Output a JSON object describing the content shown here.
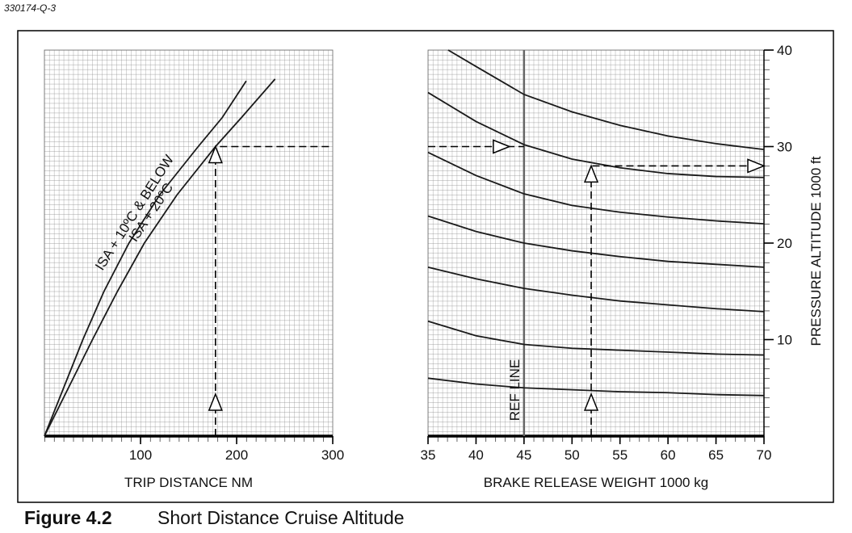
{
  "figure_id": "330174-Q-3",
  "caption": {
    "number": "Figure 4.2",
    "title": "Short Distance Cruise Altitude"
  },
  "chart_data": [
    {
      "type": "line",
      "xlabel": "TRIP DISTANCE  NM",
      "xlim": [
        0,
        300
      ],
      "xticks": [
        100,
        200,
        300
      ],
      "ylim": [
        0,
        40
      ],
      "grid": true,
      "series": [
        {
          "name": "ISA + 10ºC & BELOW",
          "color": "#1a1a1a",
          "x": [
            0,
            20,
            40,
            62,
            88,
            120,
            160,
            185,
            210
          ],
          "values": [
            0,
            5,
            10,
            15,
            20,
            25,
            30,
            33,
            36.8
          ]
        },
        {
          "name": "ISA + 20ºC",
          "color": "#1a1a1a",
          "x": [
            0,
            25,
            50,
            76,
            104,
            138,
            178,
            205,
            240
          ],
          "values": [
            0,
            5,
            10,
            15,
            20,
            25,
            30,
            33,
            37
          ]
        }
      ],
      "guides": [
        {
          "x": [
            178,
            178,
            300
          ],
          "y": [
            0,
            30,
            30
          ]
        }
      ]
    },
    {
      "type": "line",
      "xlabel": "BRAKE RELEASE WEIGHT   1000 kg",
      "ylabel": "PRESSURE ALTITUDE   1000 ft",
      "xlim": [
        35,
        70
      ],
      "xticks": [
        35,
        40,
        45,
        50,
        55,
        60,
        65,
        70
      ],
      "ylim": [
        0,
        40
      ],
      "yticks": [
        10,
        20,
        30,
        40
      ],
      "grid": true,
      "ref_line": {
        "x": 45,
        "label": "REF LINE"
      },
      "series": [
        {
          "color": "#1a1a1a",
          "x": [
            37.1,
            40,
            45,
            50,
            55,
            60,
            65,
            70
          ],
          "values": [
            40,
            38.3,
            35.4,
            33.6,
            32.2,
            31.1,
            30.3,
            29.7
          ]
        },
        {
          "color": "#1a1a1a",
          "x": [
            35,
            40,
            45,
            50,
            55,
            60,
            65,
            70
          ],
          "values": [
            35.6,
            32.6,
            30.2,
            28.7,
            27.8,
            27.2,
            26.9,
            26.8
          ]
        },
        {
          "color": "#1a1a1a",
          "x": [
            35,
            40,
            45,
            50,
            55,
            60,
            65,
            70
          ],
          "values": [
            29.4,
            27,
            25.1,
            23.9,
            23.2,
            22.7,
            22.3,
            22
          ]
        },
        {
          "color": "#1a1a1a",
          "x": [
            35,
            40,
            45,
            50,
            55,
            60,
            65,
            70
          ],
          "values": [
            22.8,
            21.2,
            20,
            19.2,
            18.6,
            18.1,
            17.8,
            17.5
          ]
        },
        {
          "color": "#1a1a1a",
          "x": [
            35,
            40,
            45,
            50,
            55,
            60,
            65,
            70
          ],
          "values": [
            17.5,
            16.3,
            15.3,
            14.6,
            14,
            13.6,
            13.2,
            12.9
          ]
        },
        {
          "color": "#1a1a1a",
          "x": [
            35,
            40,
            45,
            50,
            55,
            60,
            65,
            70
          ],
          "values": [
            11.9,
            10.4,
            9.5,
            9.1,
            8.9,
            8.7,
            8.5,
            8.4
          ]
        },
        {
          "color": "#1a1a1a",
          "x": [
            35,
            40,
            45,
            50,
            55,
            60,
            65,
            70
          ],
          "values": [
            6,
            5.4,
            5,
            4.8,
            4.6,
            4.5,
            4.3,
            4.2
          ]
        }
      ],
      "guides": [
        {
          "x": [
            35,
            45
          ],
          "y": [
            30,
            30
          ]
        },
        {
          "x": [
            52,
            52,
            70
          ],
          "y": [
            0,
            28,
            28
          ]
        }
      ]
    }
  ]
}
